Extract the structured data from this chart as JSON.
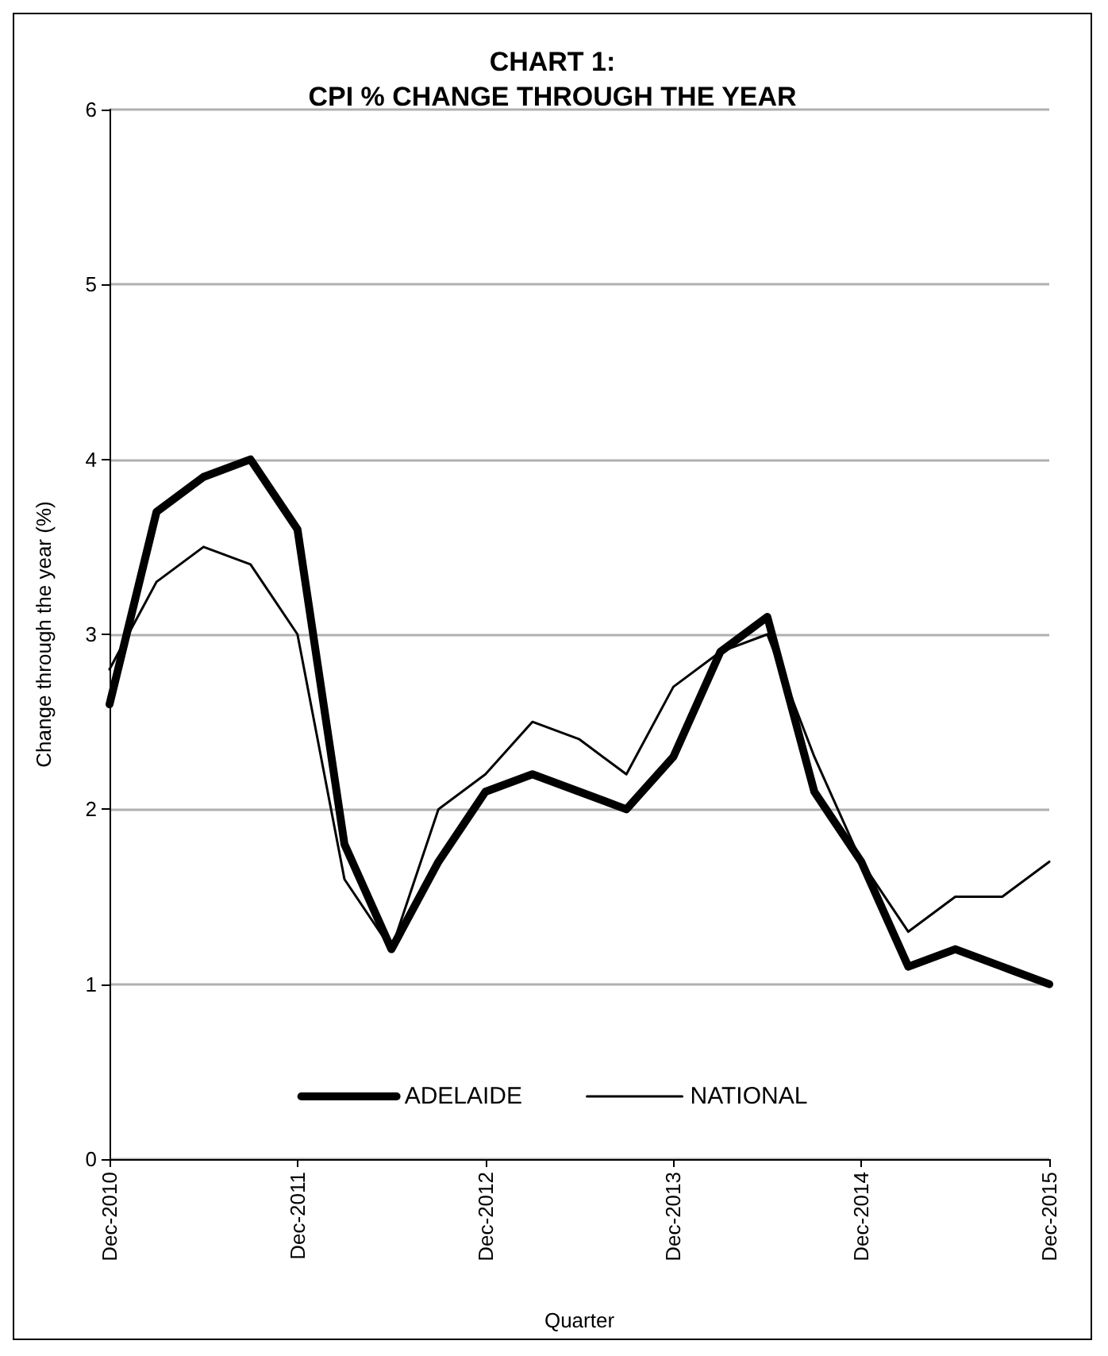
{
  "chart_data": {
    "type": "line",
    "title": "CHART 1:\nCPI % CHANGE THROUGH THE YEAR",
    "xlabel": "Quarter",
    "ylabel": "Change through the year (%)",
    "categories": [
      "Dec-2010",
      null,
      null,
      null,
      "Dec-2011",
      null,
      null,
      null,
      "Dec-2012",
      null,
      null,
      null,
      "Dec-2013",
      null,
      null,
      null,
      "Dec-2014",
      null,
      null,
      null,
      "Dec-2015"
    ],
    "series": [
      {
        "name": "ADELAIDE",
        "color": "#000000",
        "values": [
          2.6,
          3.7,
          3.9,
          4.0,
          3.6,
          1.8,
          1.2,
          1.7,
          2.1,
          2.2,
          2.1,
          2.0,
          2.3,
          2.9,
          3.1,
          2.1,
          1.7,
          1.1,
          1.2,
          1.1,
          1.0
        ]
      },
      {
        "name": "NATIONAL",
        "color": "#000000",
        "values": [
          2.8,
          3.3,
          3.5,
          3.4,
          3.0,
          1.6,
          1.2,
          2.0,
          2.2,
          2.5,
          2.4,
          2.2,
          2.7,
          2.9,
          3.0,
          2.3,
          1.7,
          1.3,
          1.5,
          1.5,
          1.7
        ]
      }
    ],
    "ylim": [
      0,
      6
    ],
    "yticks": [
      0,
      1,
      2,
      3,
      4,
      5,
      6
    ],
    "grid": "y",
    "legend": "bottom",
    "marker": "none",
    "line_style": "solid"
  }
}
